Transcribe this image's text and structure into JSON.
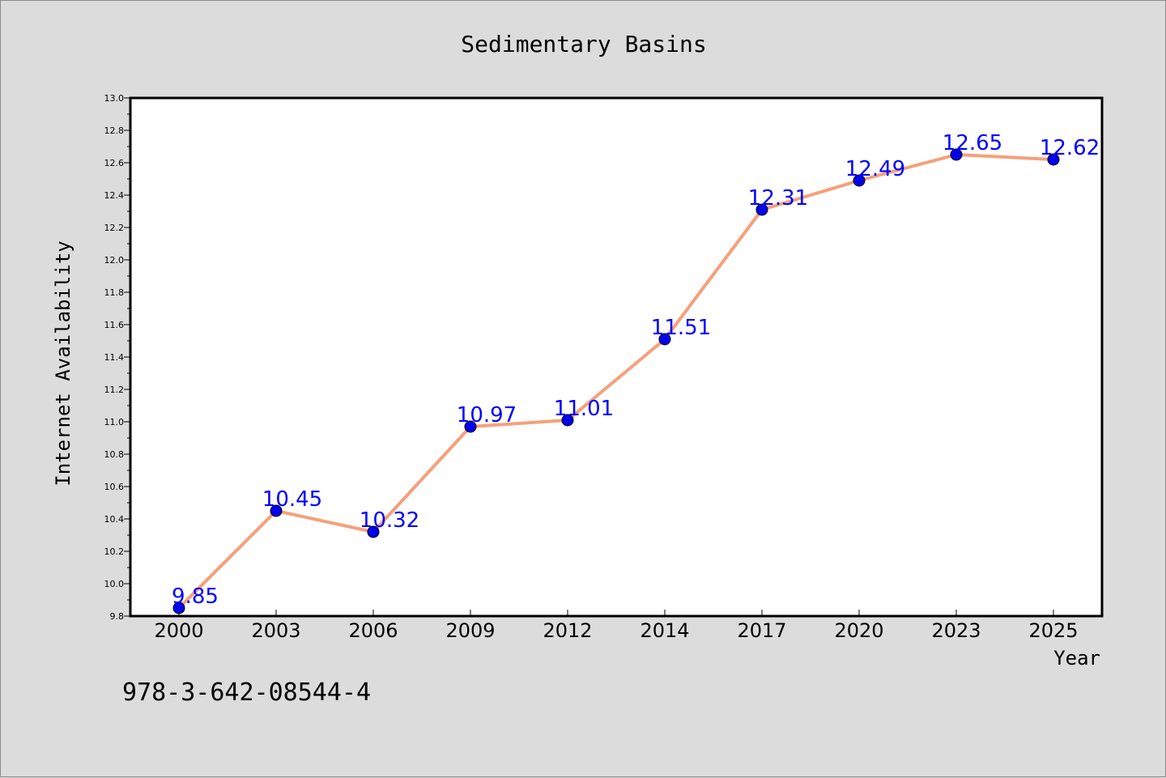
{
  "chart_data": {
    "type": "line",
    "title": "Sedimentary Basins",
    "xlabel": "Year",
    "ylabel": "Internet Availability",
    "categories": [
      "2000",
      "2003",
      "2006",
      "2009",
      "2012",
      "2014",
      "2017",
      "2020",
      "2023",
      "2025"
    ],
    "series": [
      {
        "values": [
          9.85,
          10.45,
          10.32,
          10.97,
          11.01,
          11.51,
          12.31,
          12.49,
          12.65,
          12.62
        ],
        "line_color": "#f5a07a",
        "marker_color": "#0000ee",
        "label_color": "#0000ff"
      }
    ],
    "ylim": [
      9.8,
      13.0
    ],
    "yticks": [
      "9.8",
      "10.0",
      "10.2",
      "10.4",
      "10.6",
      "10.8",
      "11.0",
      "11.2",
      "11.4",
      "11.6",
      "11.8",
      "12.0",
      "12.2",
      "12.4",
      "12.6",
      "12.8",
      "13.0"
    ],
    "grid": false,
    "legend": "none"
  },
  "footer": {
    "code": "978-3-642-08544-4"
  }
}
